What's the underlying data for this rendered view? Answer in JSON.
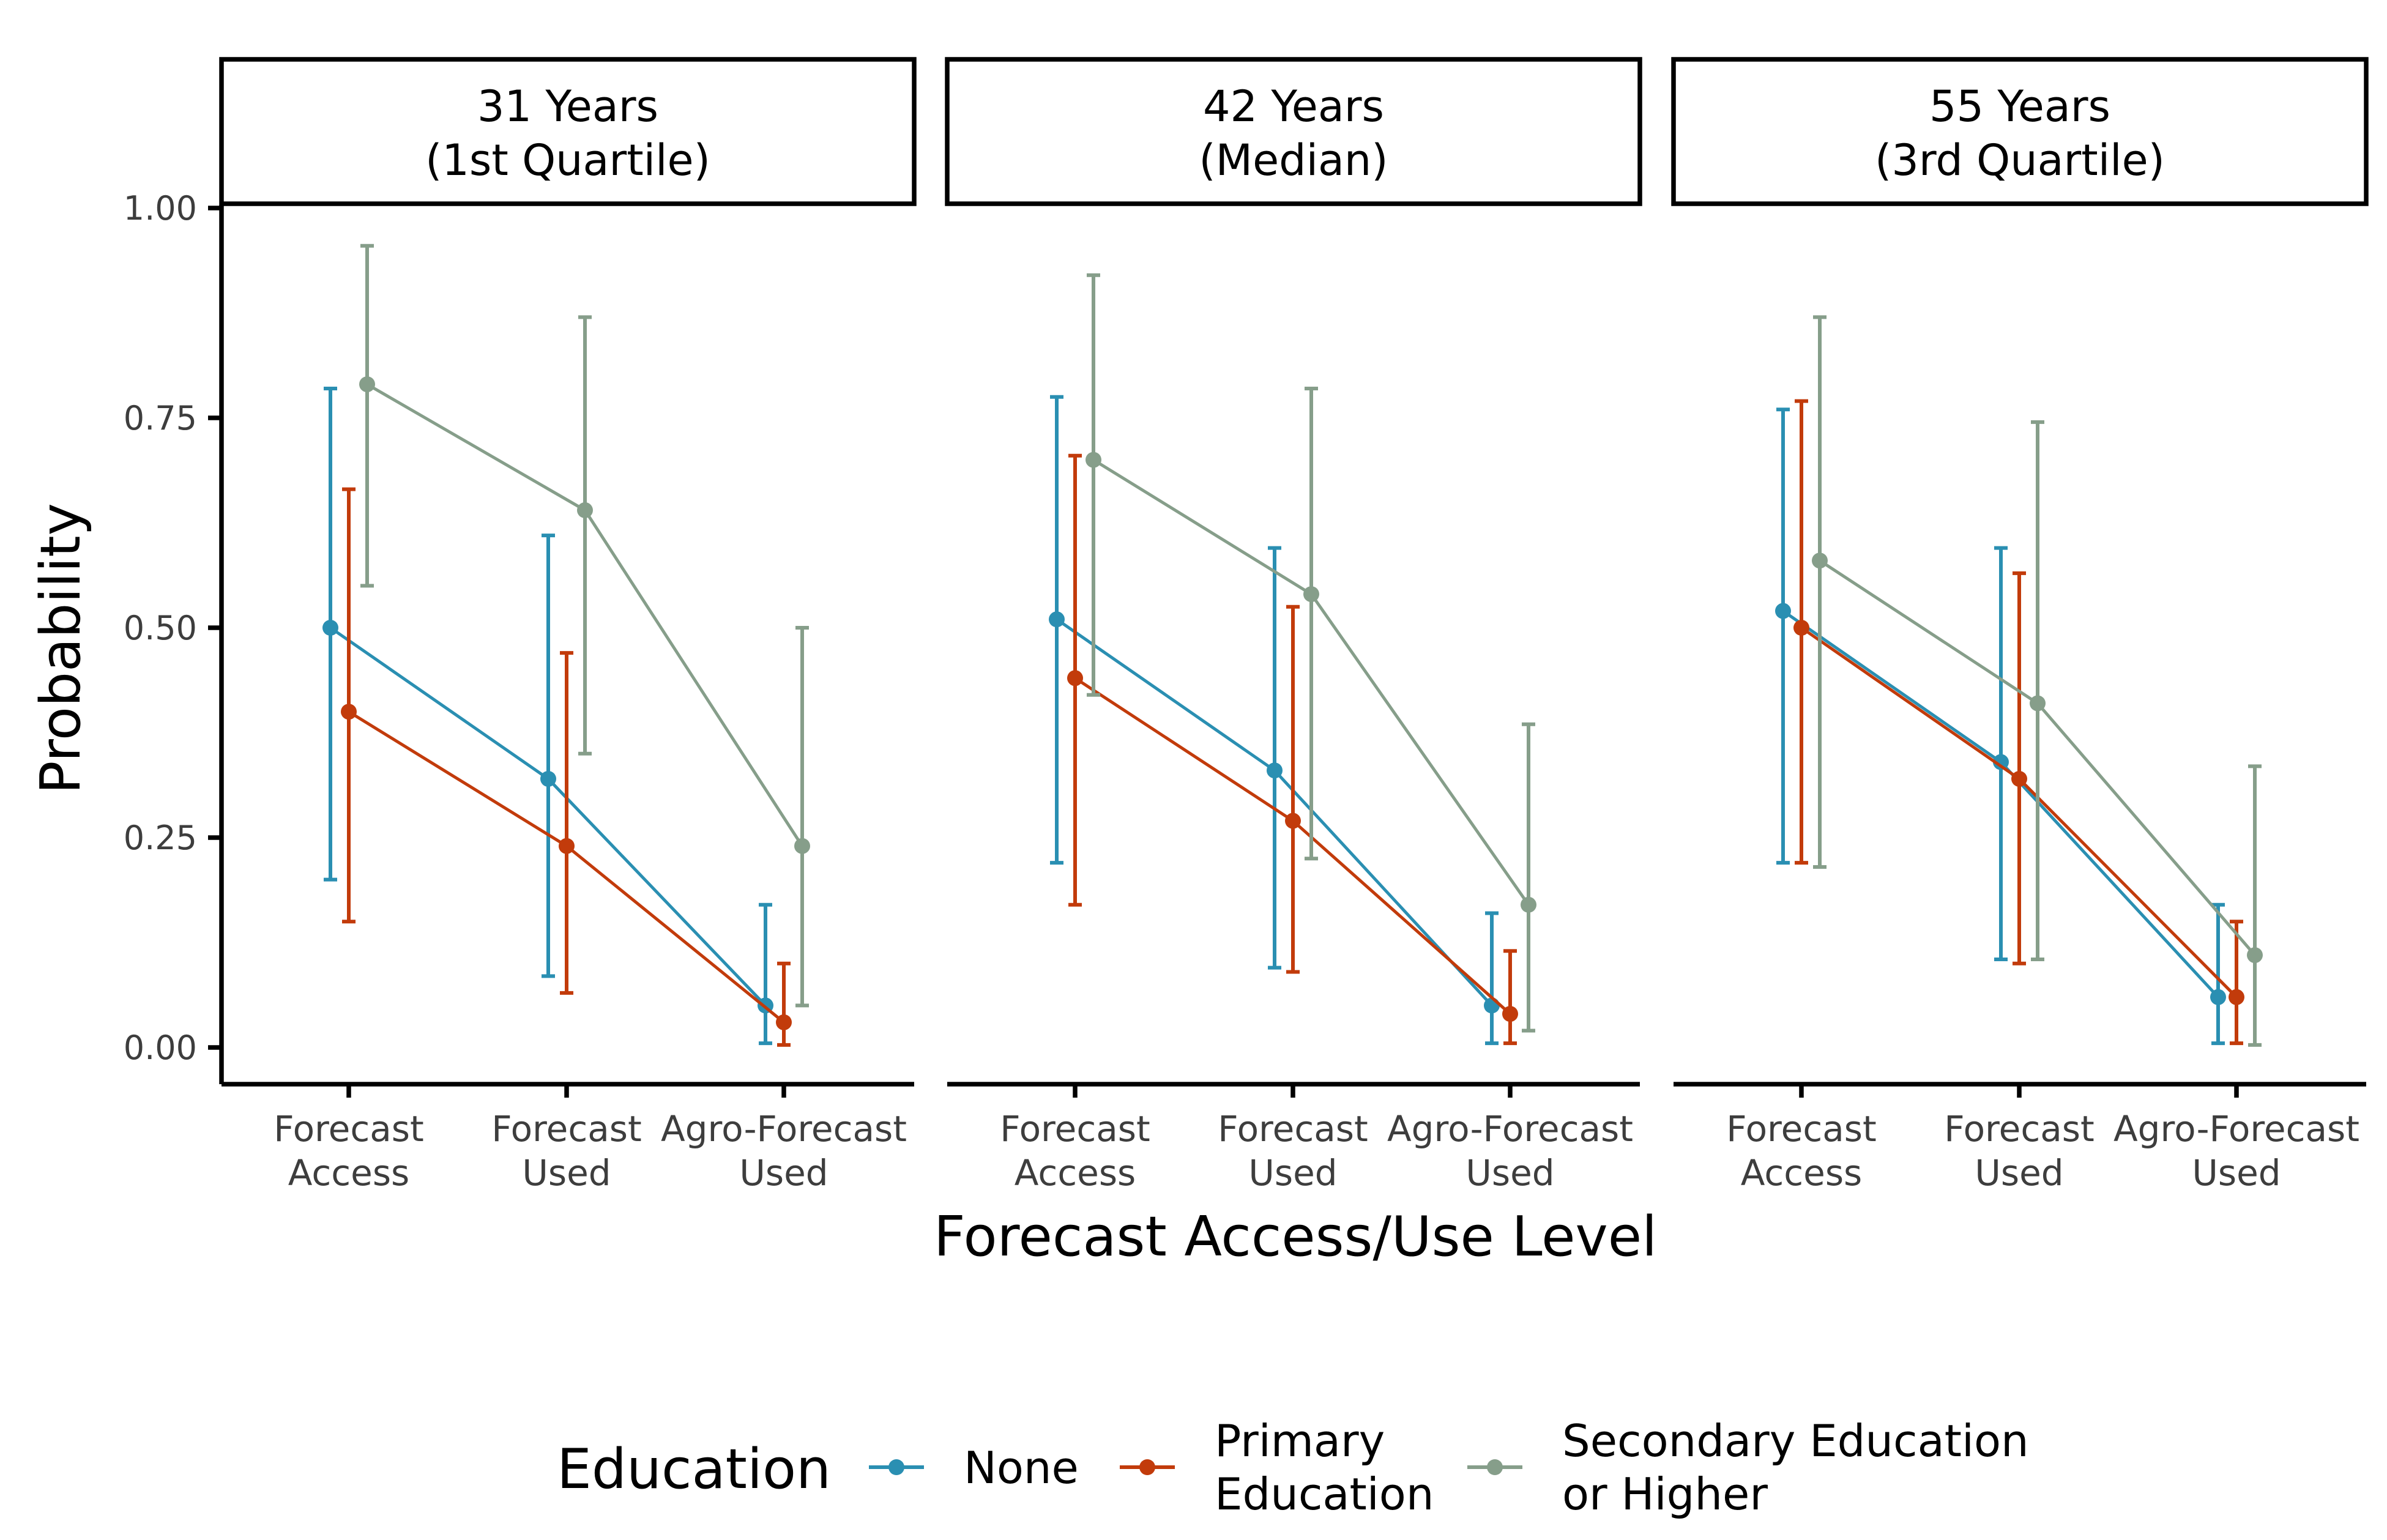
{
  "chart_data": {
    "type": "line",
    "facets": [
      {
        "label_line1": "31 Years",
        "label_line2": "(1st Quartile)"
      },
      {
        "label_line1": "42 Years",
        "label_line2": "(Median)"
      },
      {
        "label_line1": "55 Years",
        "label_line2": "(3rd Quartile)"
      }
    ],
    "categories": [
      {
        "line1": "Forecast",
        "line2": "Access"
      },
      {
        "line1": "Forecast",
        "line2": "Used"
      },
      {
        "line1": "Agro-Forecast",
        "line2": "Used"
      }
    ],
    "xlabel": "Forecast Access/Use Level",
    "ylabel": "Probability",
    "ylim": [
      0,
      1
    ],
    "yticks": [
      "0.00",
      "0.25",
      "0.50",
      "0.75",
      "1.00"
    ],
    "legend": {
      "title": "Education",
      "position": "bottom",
      "entries": [
        {
          "line1": "None",
          "line2": ""
        },
        {
          "line1": "Primary",
          "line2": "Education"
        },
        {
          "line1": "Secondary Education",
          "line2": "or Higher"
        }
      ]
    },
    "series": [
      {
        "name": "None",
        "color": "#2a8fb2",
        "facets": [
          {
            "values": [
              0.5,
              0.32,
              0.05
            ],
            "lower": [
              0.2,
              0.085,
              0.005
            ],
            "upper": [
              0.785,
              0.61,
              0.17
            ]
          },
          {
            "values": [
              0.51,
              0.33,
              0.05
            ],
            "lower": [
              0.22,
              0.095,
              0.005
            ],
            "upper": [
              0.775,
              0.595,
              0.16
            ]
          },
          {
            "values": [
              0.52,
              0.34,
              0.06
            ],
            "lower": [
              0.22,
              0.105,
              0.005
            ],
            "upper": [
              0.76,
              0.595,
              0.17
            ]
          }
        ]
      },
      {
        "name": "Primary Education",
        "color": "#c23b0b",
        "facets": [
          {
            "values": [
              0.4,
              0.24,
              0.03
            ],
            "lower": [
              0.15,
              0.065,
              0.003
            ],
            "upper": [
              0.665,
              0.47,
              0.1
            ]
          },
          {
            "values": [
              0.44,
              0.27,
              0.04
            ],
            "lower": [
              0.17,
              0.09,
              0.005
            ],
            "upper": [
              0.705,
              0.525,
              0.115
            ]
          },
          {
            "values": [
              0.5,
              0.32,
              0.06
            ],
            "lower": [
              0.22,
              0.1,
              0.005
            ],
            "upper": [
              0.77,
              0.565,
              0.15
            ]
          }
        ]
      },
      {
        "name": "Secondary Education or Higher",
        "color": "#869e8a",
        "facets": [
          {
            "values": [
              0.79,
              0.64,
              0.24
            ],
            "lower": [
              0.55,
              0.35,
              0.05
            ],
            "upper": [
              0.955,
              0.87,
              0.5
            ]
          },
          {
            "values": [
              0.7,
              0.54,
              0.17
            ],
            "lower": [
              0.42,
              0.225,
              0.02
            ],
            "upper": [
              0.92,
              0.785,
              0.385
            ]
          },
          {
            "values": [
              0.58,
              0.41,
              0.11
            ],
            "lower": [
              0.215,
              0.105,
              0.003
            ],
            "upper": [
              0.87,
              0.745,
              0.335
            ]
          }
        ]
      }
    ]
  }
}
